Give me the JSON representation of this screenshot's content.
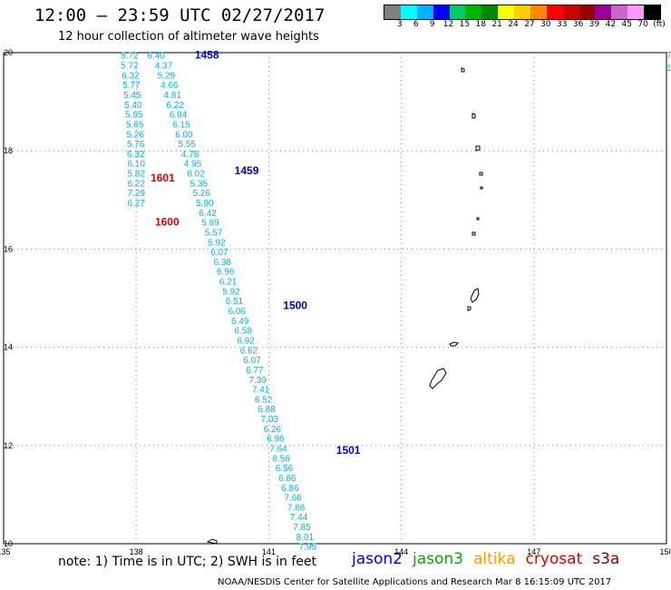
{
  "header": {
    "title": "12:00 – 23:59 UTC 02/27/2017",
    "subtitle": "12 hour collection of altimeter wave heights"
  },
  "colorbar": {
    "colors": [
      "#808080",
      "#00ffff",
      "#00b4ff",
      "#0000ff",
      "#00cc66",
      "#00b400",
      "#008800",
      "#ffff00",
      "#ffcc00",
      "#ff8800",
      "#ff0000",
      "#cc0000",
      "#990000",
      "#990099",
      "#cc66cc",
      "#ff99ff",
      "#000000"
    ],
    "labels": [
      "3",
      "6",
      "9",
      "12",
      "15",
      "18",
      "21",
      "24",
      "27",
      "30",
      "33",
      "36",
      "39",
      "42",
      "45",
      "70",
      "(ft)"
    ]
  },
  "map": {
    "y_ticks": [
      "20",
      "18",
      "16",
      "14",
      "12",
      "10"
    ],
    "x_ticks": [
      "135",
      "138",
      "141",
      "144",
      "147",
      "150"
    ],
    "edge_labels": [
      "7",
      "1"
    ]
  },
  "chart_data": {
    "type": "scatter",
    "title": "12:00 – 23:59 UTC 02/27/2017",
    "subtitle": "12 hour collection of altimeter wave heights",
    "xlim": [
      135,
      150
    ],
    "ylim": [
      10,
      20
    ],
    "time_labels": [
      {
        "text": "1458",
        "color": "#0000cc",
        "lon": 139.6,
        "lat": 19.95
      },
      {
        "text": "1459",
        "color": "#0000cc",
        "lon": 140.5,
        "lat": 17.6
      },
      {
        "text": "1601",
        "color": "#dd0000",
        "lon": 138.6,
        "lat": 17.45
      },
      {
        "text": "1600",
        "color": "#dd0000",
        "lon": 138.7,
        "lat": 16.55
      },
      {
        "text": "1500",
        "color": "#0000cc",
        "lon": 141.6,
        "lat": 14.85
      },
      {
        "text": "1501",
        "color": "#0000cc",
        "lon": 142.8,
        "lat": 11.9
      }
    ],
    "series": [
      {
        "name": "jason2",
        "points": [
          {
            "lon": 138.45,
            "lat": 19.95,
            "v": "6.40"
          },
          {
            "lon": 138.62,
            "lat": 19.75,
            "v": "4.37"
          },
          {
            "lon": 138.68,
            "lat": 19.55,
            "v": "5.29"
          },
          {
            "lon": 138.75,
            "lat": 19.35,
            "v": "4.66"
          },
          {
            "lon": 138.82,
            "lat": 19.15,
            "v": "4.81"
          },
          {
            "lon": 138.88,
            "lat": 18.95,
            "v": "6.22"
          },
          {
            "lon": 138.95,
            "lat": 18.75,
            "v": "6.84"
          },
          {
            "lon": 139.02,
            "lat": 18.55,
            "v": "6.15"
          },
          {
            "lon": 139.08,
            "lat": 18.35,
            "v": "6.00"
          },
          {
            "lon": 139.15,
            "lat": 18.15,
            "v": "5.55"
          },
          {
            "lon": 139.22,
            "lat": 17.95,
            "v": "4.78"
          },
          {
            "lon": 139.28,
            "lat": 17.75,
            "v": "4.95"
          },
          {
            "lon": 139.35,
            "lat": 17.55,
            "v": "6.02"
          },
          {
            "lon": 139.42,
            "lat": 17.35,
            "v": "5.35"
          },
          {
            "lon": 139.48,
            "lat": 17.15,
            "v": "5.26"
          },
          {
            "lon": 139.55,
            "lat": 16.95,
            "v": "5.90"
          },
          {
            "lon": 139.62,
            "lat": 16.75,
            "v": "6.42"
          },
          {
            "lon": 139.68,
            "lat": 16.55,
            "v": "5.89"
          },
          {
            "lon": 139.75,
            "lat": 16.35,
            "v": "5.57"
          },
          {
            "lon": 139.82,
            "lat": 16.15,
            "v": "5.92"
          },
          {
            "lon": 139.88,
            "lat": 15.95,
            "v": "6.07"
          },
          {
            "lon": 139.95,
            "lat": 15.75,
            "v": "6.38"
          },
          {
            "lon": 140.02,
            "lat": 15.55,
            "v": "6.96"
          },
          {
            "lon": 140.08,
            "lat": 15.35,
            "v": "6.21"
          },
          {
            "lon": 140.15,
            "lat": 15.15,
            "v": "5.92"
          },
          {
            "lon": 140.22,
            "lat": 14.95,
            "v": "6.51"
          },
          {
            "lon": 140.28,
            "lat": 14.75,
            "v": "6.06"
          },
          {
            "lon": 140.35,
            "lat": 14.55,
            "v": "6.49"
          },
          {
            "lon": 140.42,
            "lat": 14.35,
            "v": "6.58"
          },
          {
            "lon": 140.48,
            "lat": 14.15,
            "v": "6.92"
          },
          {
            "lon": 140.55,
            "lat": 13.95,
            "v": "6.62"
          },
          {
            "lon": 140.62,
            "lat": 13.75,
            "v": "6.07"
          },
          {
            "lon": 140.68,
            "lat": 13.55,
            "v": "6.77"
          },
          {
            "lon": 140.75,
            "lat": 13.35,
            "v": "7.39"
          },
          {
            "lon": 140.82,
            "lat": 13.15,
            "v": "7.41"
          },
          {
            "lon": 140.88,
            "lat": 12.95,
            "v": "6.52"
          },
          {
            "lon": 140.95,
            "lat": 12.75,
            "v": "6.88"
          },
          {
            "lon": 141.02,
            "lat": 12.55,
            "v": "7.03"
          },
          {
            "lon": 141.08,
            "lat": 12.35,
            "v": "6.26"
          },
          {
            "lon": 141.15,
            "lat": 12.15,
            "v": "6.96"
          },
          {
            "lon": 141.22,
            "lat": 11.95,
            "v": "7.64"
          },
          {
            "lon": 141.28,
            "lat": 11.75,
            "v": "6.56"
          },
          {
            "lon": 141.35,
            "lat": 11.55,
            "v": "6.56"
          },
          {
            "lon": 141.42,
            "lat": 11.35,
            "v": "6.86"
          },
          {
            "lon": 141.48,
            "lat": 11.15,
            "v": "6.86"
          },
          {
            "lon": 141.55,
            "lat": 10.95,
            "v": "7.66"
          },
          {
            "lon": 141.62,
            "lat": 10.75,
            "v": "7.86"
          },
          {
            "lon": 141.68,
            "lat": 10.55,
            "v": "7.44"
          },
          {
            "lon": 141.75,
            "lat": 10.35,
            "v": "7.85"
          },
          {
            "lon": 141.82,
            "lat": 10.15,
            "v": "8.01"
          },
          {
            "lon": 141.88,
            "lat": 9.95,
            "v": "7.95"
          }
        ]
      },
      {
        "name": "cryosat",
        "points": [
          {
            "lon": 137.85,
            "lat": 19.95,
            "v": "5.72"
          },
          {
            "lon": 137.85,
            "lat": 19.75,
            "v": "5.72"
          },
          {
            "lon": 137.87,
            "lat": 19.55,
            "v": "6.32"
          },
          {
            "lon": 137.89,
            "lat": 19.35,
            "v": "5.77"
          },
          {
            "lon": 137.91,
            "lat": 19.15,
            "v": "5.45"
          },
          {
            "lon": 137.93,
            "lat": 18.95,
            "v": "5.40"
          },
          {
            "lon": 137.95,
            "lat": 18.75,
            "v": "5.95"
          },
          {
            "lon": 137.97,
            "lat": 18.55,
            "v": "5.65"
          },
          {
            "lon": 137.98,
            "lat": 18.35,
            "v": "5.26"
          },
          {
            "lon": 137.99,
            "lat": 18.15,
            "v": "5.76"
          },
          {
            "lon": 137.99,
            "lat": 17.95,
            "v": "6.32"
          },
          {
            "lon": 138.0,
            "lat": 17.75,
            "v": "6.10"
          },
          {
            "lon": 138.0,
            "lat": 17.55,
            "v": "5.82"
          },
          {
            "lon": 138.0,
            "lat": 17.35,
            "v": "6.22"
          },
          {
            "lon": 138.0,
            "lat": 17.15,
            "v": "7.29"
          },
          {
            "lon": 138.0,
            "lat": 16.95,
            "v": "6.27"
          }
        ]
      }
    ]
  },
  "legend": {
    "items": [
      {
        "label": "jason2",
        "color": "#0000ee"
      },
      {
        "label": "jason3",
        "color": "#00aa00"
      },
      {
        "label": "altika",
        "color": "#ff9900"
      },
      {
        "label": "cryosat",
        "color": "#dd0000"
      },
      {
        "label": "s3a",
        "color": "#880000"
      }
    ]
  },
  "footer": {
    "note": "note: 1) Time is in UTC; 2) SWH is in feet",
    "credit": "NOAA/NESDIS Center for Satellite Applications and Research   Mar  8 16:15:09 UTC 2017"
  }
}
